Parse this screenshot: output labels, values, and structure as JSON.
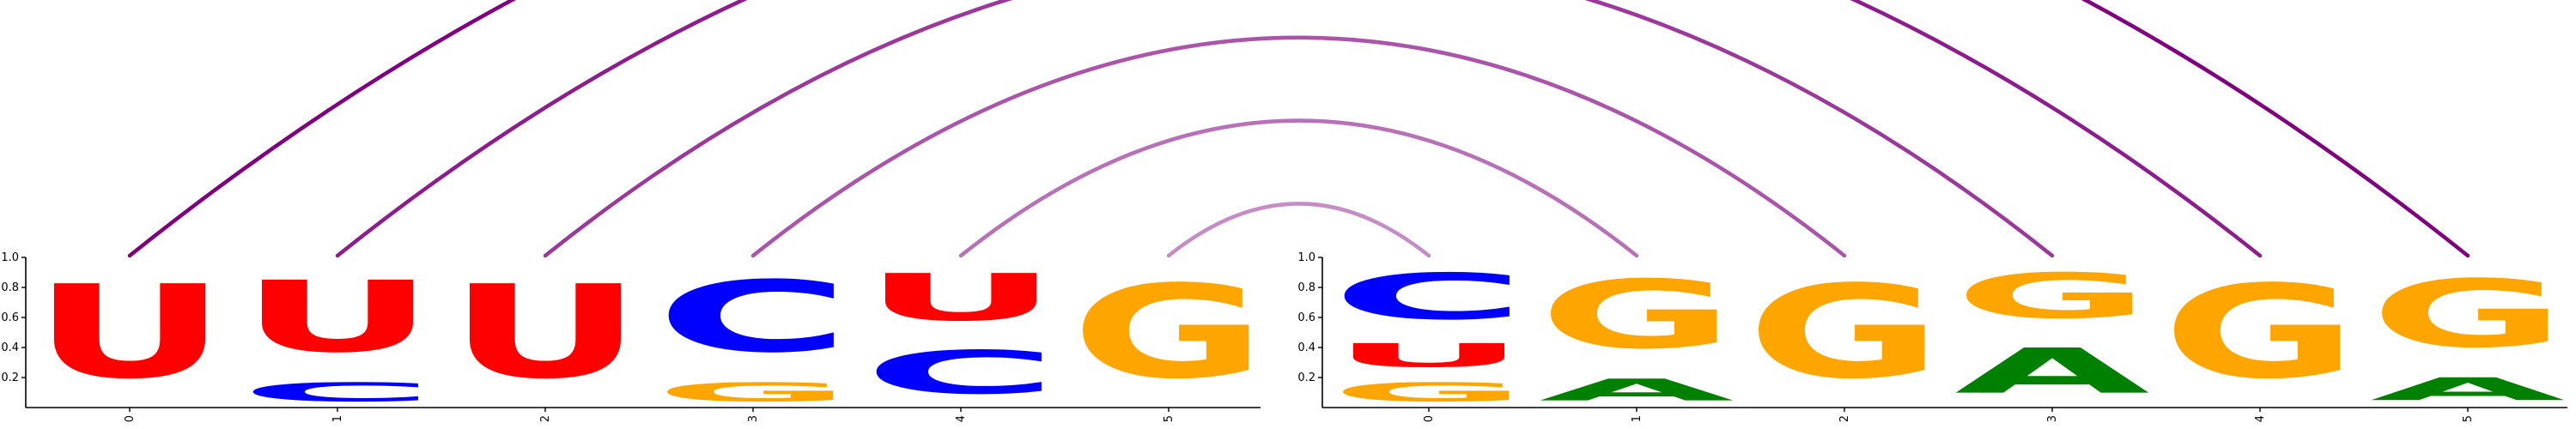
{
  "chart_data": {
    "type": "sequence-logo",
    "colors": {
      "U": "#ff0000",
      "C": "#0000ff",
      "G": "#ffa500",
      "A": "#008000"
    },
    "arc_color": "#800080",
    "yticks": [
      0.2,
      0.4,
      0.6,
      0.8,
      1.0
    ],
    "ylim": [
      0,
      1.0
    ],
    "panels": [
      {
        "x_ticks": [
          "0",
          "1",
          "2",
          "3",
          "4",
          "5"
        ],
        "positions": [
          [
            {
              "letter": "U",
              "value": 1.0
            }
          ],
          [
            {
              "letter": "C",
              "value": 0.22
            },
            {
              "letter": "U",
              "value": 0.78
            }
          ],
          [
            {
              "letter": "U",
              "value": 1.0
            }
          ],
          [
            {
              "letter": "G",
              "value": 0.22
            },
            {
              "letter": "C",
              "value": 0.78
            }
          ],
          [
            {
              "letter": "C",
              "value": 0.48
            },
            {
              "letter": "U",
              "value": 0.52
            }
          ],
          [
            {
              "letter": "G",
              "value": 1.0
            }
          ]
        ]
      },
      {
        "x_ticks": [
          "0",
          "1",
          "2",
          "3",
          "4",
          "5"
        ],
        "positions": [
          [
            {
              "letter": "G",
              "value": 0.22
            },
            {
              "letter": "U",
              "value": 0.27
            },
            {
              "letter": "C",
              "value": 0.51
            }
          ],
          [
            {
              "letter": "A",
              "value": 0.25
            },
            {
              "letter": "G",
              "value": 0.75
            }
          ],
          [
            {
              "letter": "G",
              "value": 1.0
            }
          ],
          [
            {
              "letter": "A",
              "value": 0.5
            },
            {
              "letter": "G",
              "value": 0.5
            }
          ],
          [
            {
              "letter": "G",
              "value": 1.0
            }
          ],
          [
            {
              "letter": "A",
              "value": 0.26
            },
            {
              "letter": "G",
              "value": 0.74
            }
          ]
        ]
      }
    ],
    "pairs": [
      {
        "from": [
          0,
          0
        ],
        "to": [
          1,
          5
        ]
      },
      {
        "from": [
          0,
          1
        ],
        "to": [
          1,
          4
        ]
      },
      {
        "from": [
          0,
          2
        ],
        "to": [
          1,
          3
        ]
      },
      {
        "from": [
          0,
          3
        ],
        "to": [
          1,
          2
        ]
      },
      {
        "from": [
          0,
          4
        ],
        "to": [
          1,
          1
        ]
      },
      {
        "from": [
          0,
          5
        ],
        "to": [
          1,
          0
        ]
      }
    ]
  }
}
